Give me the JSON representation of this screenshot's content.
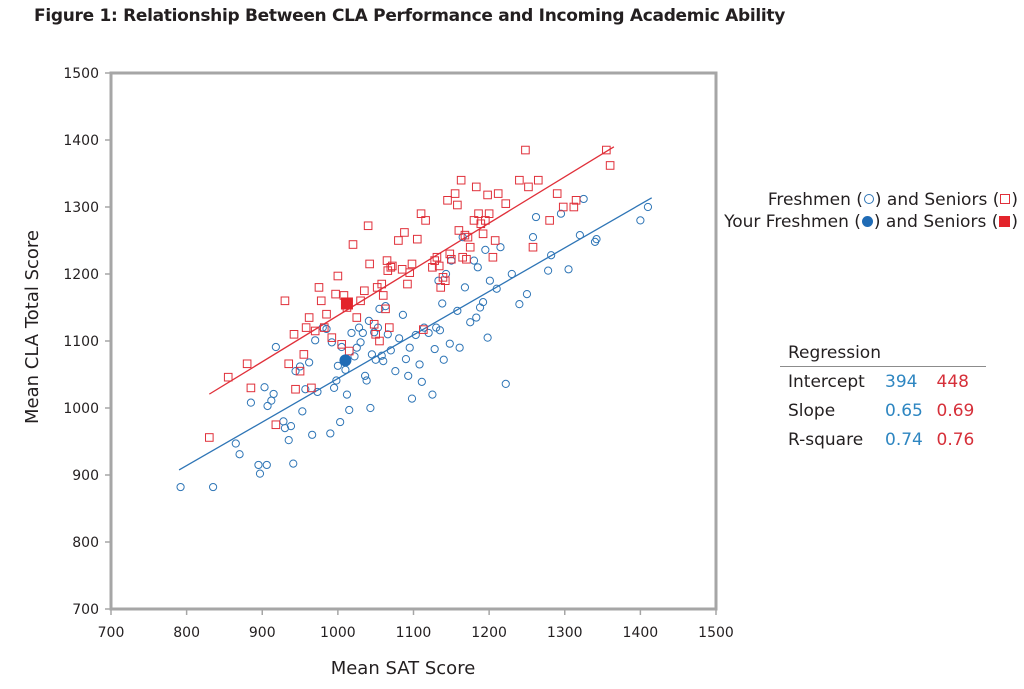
{
  "title": "Figure 1: Relationship Between CLA Performance and Incoming Academic Ability",
  "colors": {
    "freshmen": "#2e75b6",
    "seniors": "#e0303a",
    "your_freshmen": "#1f6bb5",
    "your_seniors": "#e3242b",
    "frame": "#a6a6a6"
  },
  "legend": {
    "line1": {
      "text_a": "Freshmen (",
      "text_b": ") and Seniors (",
      "text_c": ")"
    },
    "line2": {
      "text_a": "Your Freshmen (",
      "text_b": ") and Seniors (",
      "text_c": ")"
    }
  },
  "regression_table": {
    "header": "Regression",
    "rows": [
      {
        "label": "Intercept",
        "freshmen": "394",
        "seniors": "448"
      },
      {
        "label": "Slope",
        "freshmen": "0.65",
        "seniors": "0.69"
      },
      {
        "label": "R-square",
        "freshmen": "0.74",
        "seniors": "0.76"
      }
    ]
  },
  "chart_data": {
    "type": "scatter",
    "title": "Figure 1: Relationship Between CLA Performance and Incoming Academic Ability",
    "xlabel": "Mean SAT Score",
    "ylabel": "Mean CLA Total Score",
    "xlim": [
      700,
      1500
    ],
    "ylim": [
      700,
      1500
    ],
    "xticks": [
      "700",
      "800",
      "900",
      "1000",
      "1100",
      "1200",
      "1300",
      "1400",
      "1500"
    ],
    "yticks": [
      "700",
      "800",
      "900",
      "1000",
      "1100",
      "1200",
      "1300",
      "1400",
      "1500"
    ],
    "grid": false,
    "legend_position": "right",
    "series": [
      {
        "name": "Freshmen",
        "marker": "open-circle",
        "points": [
          [
            792,
            882
          ],
          [
            835,
            882
          ],
          [
            865,
            947
          ],
          [
            870,
            931
          ],
          [
            885,
            1008
          ],
          [
            895,
            915
          ],
          [
            897,
            902
          ],
          [
            903,
            1031
          ],
          [
            906,
            915
          ],
          [
            907,
            1003
          ],
          [
            912,
            1011
          ],
          [
            915,
            1021
          ],
          [
            918,
            1091
          ],
          [
            928,
            980
          ],
          [
            930,
            970
          ],
          [
            935,
            952
          ],
          [
            938,
            973
          ],
          [
            941,
            917
          ],
          [
            944,
            1055
          ],
          [
            950,
            1062
          ],
          [
            953,
            995
          ],
          [
            957,
            1028
          ],
          [
            962,
            1068
          ],
          [
            966,
            960
          ],
          [
            970,
            1101
          ],
          [
            973,
            1024
          ],
          [
            980,
            1120
          ],
          [
            985,
            1118
          ],
          [
            990,
            962
          ],
          [
            992,
            1098
          ],
          [
            995,
            1030
          ],
          [
            998,
            1041
          ],
          [
            1000,
            1063
          ],
          [
            1003,
            979
          ],
          [
            1005,
            1091
          ],
          [
            1010,
            1057
          ],
          [
            1012,
            1020
          ],
          [
            1015,
            997
          ],
          [
            1018,
            1112
          ],
          [
            1022,
            1077
          ],
          [
            1025,
            1090
          ],
          [
            1028,
            1120
          ],
          [
            1030,
            1098
          ],
          [
            1033,
            1112
          ],
          [
            1036,
            1048
          ],
          [
            1038,
            1041
          ],
          [
            1041,
            1130
          ],
          [
            1043,
            1000
          ],
          [
            1045,
            1080
          ],
          [
            1048,
            1113
          ],
          [
            1050,
            1072
          ],
          [
            1053,
            1120
          ],
          [
            1055,
            1148
          ],
          [
            1058,
            1078
          ],
          [
            1060,
            1070
          ],
          [
            1063,
            1152
          ],
          [
            1066,
            1110
          ],
          [
            1070,
            1086
          ],
          [
            1076,
            1055
          ],
          [
            1081,
            1104
          ],
          [
            1086,
            1139
          ],
          [
            1090,
            1073
          ],
          [
            1093,
            1048
          ],
          [
            1095,
            1090
          ],
          [
            1098,
            1014
          ],
          [
            1103,
            1109
          ],
          [
            1108,
            1065
          ],
          [
            1111,
            1039
          ],
          [
            1114,
            1120
          ],
          [
            1120,
            1112
          ],
          [
            1125,
            1020
          ],
          [
            1128,
            1088
          ],
          [
            1130,
            1120
          ],
          [
            1133,
            1190
          ],
          [
            1135,
            1116
          ],
          [
            1138,
            1156
          ],
          [
            1140,
            1072
          ],
          [
            1143,
            1200
          ],
          [
            1148,
            1096
          ],
          [
            1150,
            1220
          ],
          [
            1158,
            1145
          ],
          [
            1161,
            1090
          ],
          [
            1165,
            1255
          ],
          [
            1168,
            1180
          ],
          [
            1175,
            1128
          ],
          [
            1180,
            1220
          ],
          [
            1183,
            1135
          ],
          [
            1185,
            1210
          ],
          [
            1188,
            1150
          ],
          [
            1192,
            1158
          ],
          [
            1195,
            1236
          ],
          [
            1198,
            1105
          ],
          [
            1201,
            1190
          ],
          [
            1210,
            1178
          ],
          [
            1215,
            1240
          ],
          [
            1222,
            1036
          ],
          [
            1230,
            1200
          ],
          [
            1240,
            1155
          ],
          [
            1250,
            1170
          ],
          [
            1258,
            1255
          ],
          [
            1262,
            1285
          ],
          [
            1278,
            1205
          ],
          [
            1282,
            1228
          ],
          [
            1295,
            1290
          ],
          [
            1305,
            1207
          ],
          [
            1320,
            1258
          ],
          [
            1325,
            1312
          ],
          [
            1340,
            1248
          ],
          [
            1342,
            1252
          ],
          [
            1400,
            1280
          ],
          [
            1410,
            1300
          ]
        ]
      },
      {
        "name": "Seniors",
        "marker": "open-square",
        "points": [
          [
            830,
            956
          ],
          [
            855,
            1046
          ],
          [
            880,
            1066
          ],
          [
            885,
            1030
          ],
          [
            918,
            975
          ],
          [
            930,
            1160
          ],
          [
            935,
            1066
          ],
          [
            942,
            1110
          ],
          [
            944,
            1028
          ],
          [
            950,
            1055
          ],
          [
            955,
            1080
          ],
          [
            958,
            1120
          ],
          [
            962,
            1135
          ],
          [
            965,
            1030
          ],
          [
            970,
            1115
          ],
          [
            975,
            1180
          ],
          [
            978,
            1160
          ],
          [
            982,
            1120
          ],
          [
            985,
            1140
          ],
          [
            992,
            1105
          ],
          [
            997,
            1170
          ],
          [
            1000,
            1197
          ],
          [
            1005,
            1095
          ],
          [
            1008,
            1168
          ],
          [
            1012,
            1150
          ],
          [
            1015,
            1085
          ],
          [
            1020,
            1244
          ],
          [
            1025,
            1135
          ],
          [
            1030,
            1160
          ],
          [
            1035,
            1175
          ],
          [
            1040,
            1272
          ],
          [
            1042,
            1215
          ],
          [
            1048,
            1125
          ],
          [
            1050,
            1110
          ],
          [
            1052,
            1180
          ],
          [
            1055,
            1100
          ],
          [
            1058,
            1185
          ],
          [
            1060,
            1168
          ],
          [
            1063,
            1148
          ],
          [
            1065,
            1220
          ],
          [
            1066,
            1205
          ],
          [
            1068,
            1120
          ],
          [
            1070,
            1210
          ],
          [
            1072,
            1212
          ],
          [
            1080,
            1250
          ],
          [
            1085,
            1207
          ],
          [
            1088,
            1262
          ],
          [
            1092,
            1185
          ],
          [
            1095,
            1202
          ],
          [
            1098,
            1215
          ],
          [
            1105,
            1252
          ],
          [
            1110,
            1290
          ],
          [
            1113,
            1117
          ],
          [
            1116,
            1280
          ],
          [
            1125,
            1210
          ],
          [
            1128,
            1220
          ],
          [
            1131,
            1225
          ],
          [
            1134,
            1212
          ],
          [
            1136,
            1180
          ],
          [
            1139,
            1195
          ],
          [
            1142,
            1190
          ],
          [
            1145,
            1310
          ],
          [
            1148,
            1230
          ],
          [
            1150,
            1222
          ],
          [
            1155,
            1320
          ],
          [
            1158,
            1303
          ],
          [
            1160,
            1265
          ],
          [
            1163,
            1340
          ],
          [
            1165,
            1225
          ],
          [
            1168,
            1258
          ],
          [
            1170,
            1222
          ],
          [
            1172,
            1255
          ],
          [
            1175,
            1240
          ],
          [
            1180,
            1280
          ],
          [
            1183,
            1330
          ],
          [
            1186,
            1290
          ],
          [
            1189,
            1275
          ],
          [
            1192,
            1260
          ],
          [
            1195,
            1280
          ],
          [
            1198,
            1318
          ],
          [
            1200,
            1290
          ],
          [
            1205,
            1225
          ],
          [
            1208,
            1250
          ],
          [
            1212,
            1320
          ],
          [
            1222,
            1305
          ],
          [
            1240,
            1340
          ],
          [
            1248,
            1385
          ],
          [
            1252,
            1330
          ],
          [
            1258,
            1240
          ],
          [
            1265,
            1340
          ],
          [
            1280,
            1280
          ],
          [
            1290,
            1320
          ],
          [
            1298,
            1300
          ],
          [
            1312,
            1300
          ],
          [
            1315,
            1310
          ],
          [
            1355,
            1385
          ],
          [
            1360,
            1362
          ]
        ]
      },
      {
        "name": "Your Freshmen",
        "marker": "filled-circle",
        "points": [
          [
            1010,
            1071
          ]
        ]
      },
      {
        "name": "Your Seniors",
        "marker": "filled-square",
        "points": [
          [
            1012,
            1156
          ]
        ]
      }
    ],
    "regression_lines": [
      {
        "name": "Freshmen",
        "intercept": 394,
        "slope": 0.65,
        "r_square": 0.74,
        "x_range": [
          790,
          1415
        ]
      },
      {
        "name": "Seniors",
        "intercept": 448,
        "slope": 0.69,
        "r_square": 0.76,
        "x_range": [
          830,
          1365
        ]
      }
    ]
  }
}
